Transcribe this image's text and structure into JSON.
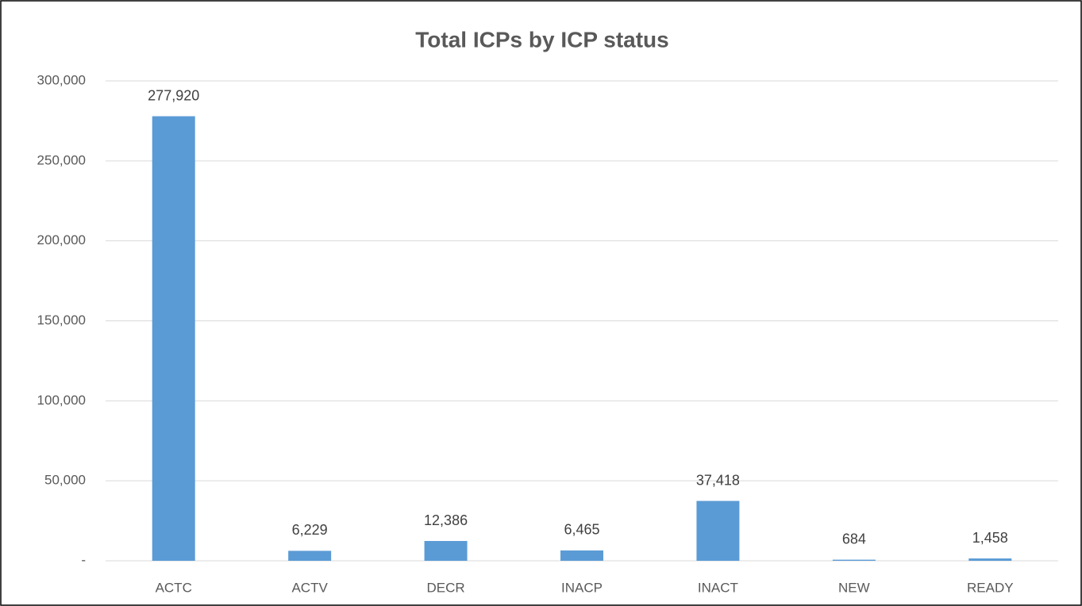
{
  "chart_data": {
    "type": "bar",
    "title": "Total ICPs by ICP status",
    "categories": [
      "ACTC",
      "ACTV",
      "DECR",
      "INACP",
      "INACT",
      "NEW",
      "READY"
    ],
    "values": [
      277920,
      6229,
      12386,
      6465,
      37418,
      684,
      1458
    ],
    "value_labels": [
      "277,920",
      "6,229",
      "12,386",
      "6,465",
      "37,418",
      "684",
      "1,458"
    ],
    "color": "#5b9bd5",
    "ylim": [
      0,
      300000
    ],
    "yticks": [
      {
        "value": 0,
        "label": "-"
      },
      {
        "value": 50000,
        "label": "50,000"
      },
      {
        "value": 100000,
        "label": "100,000"
      },
      {
        "value": 150000,
        "label": "150,000"
      },
      {
        "value": 200000,
        "label": "200,000"
      },
      {
        "value": 250000,
        "label": "250,000"
      },
      {
        "value": 300000,
        "label": "300,000"
      }
    ],
    "grid": true
  }
}
